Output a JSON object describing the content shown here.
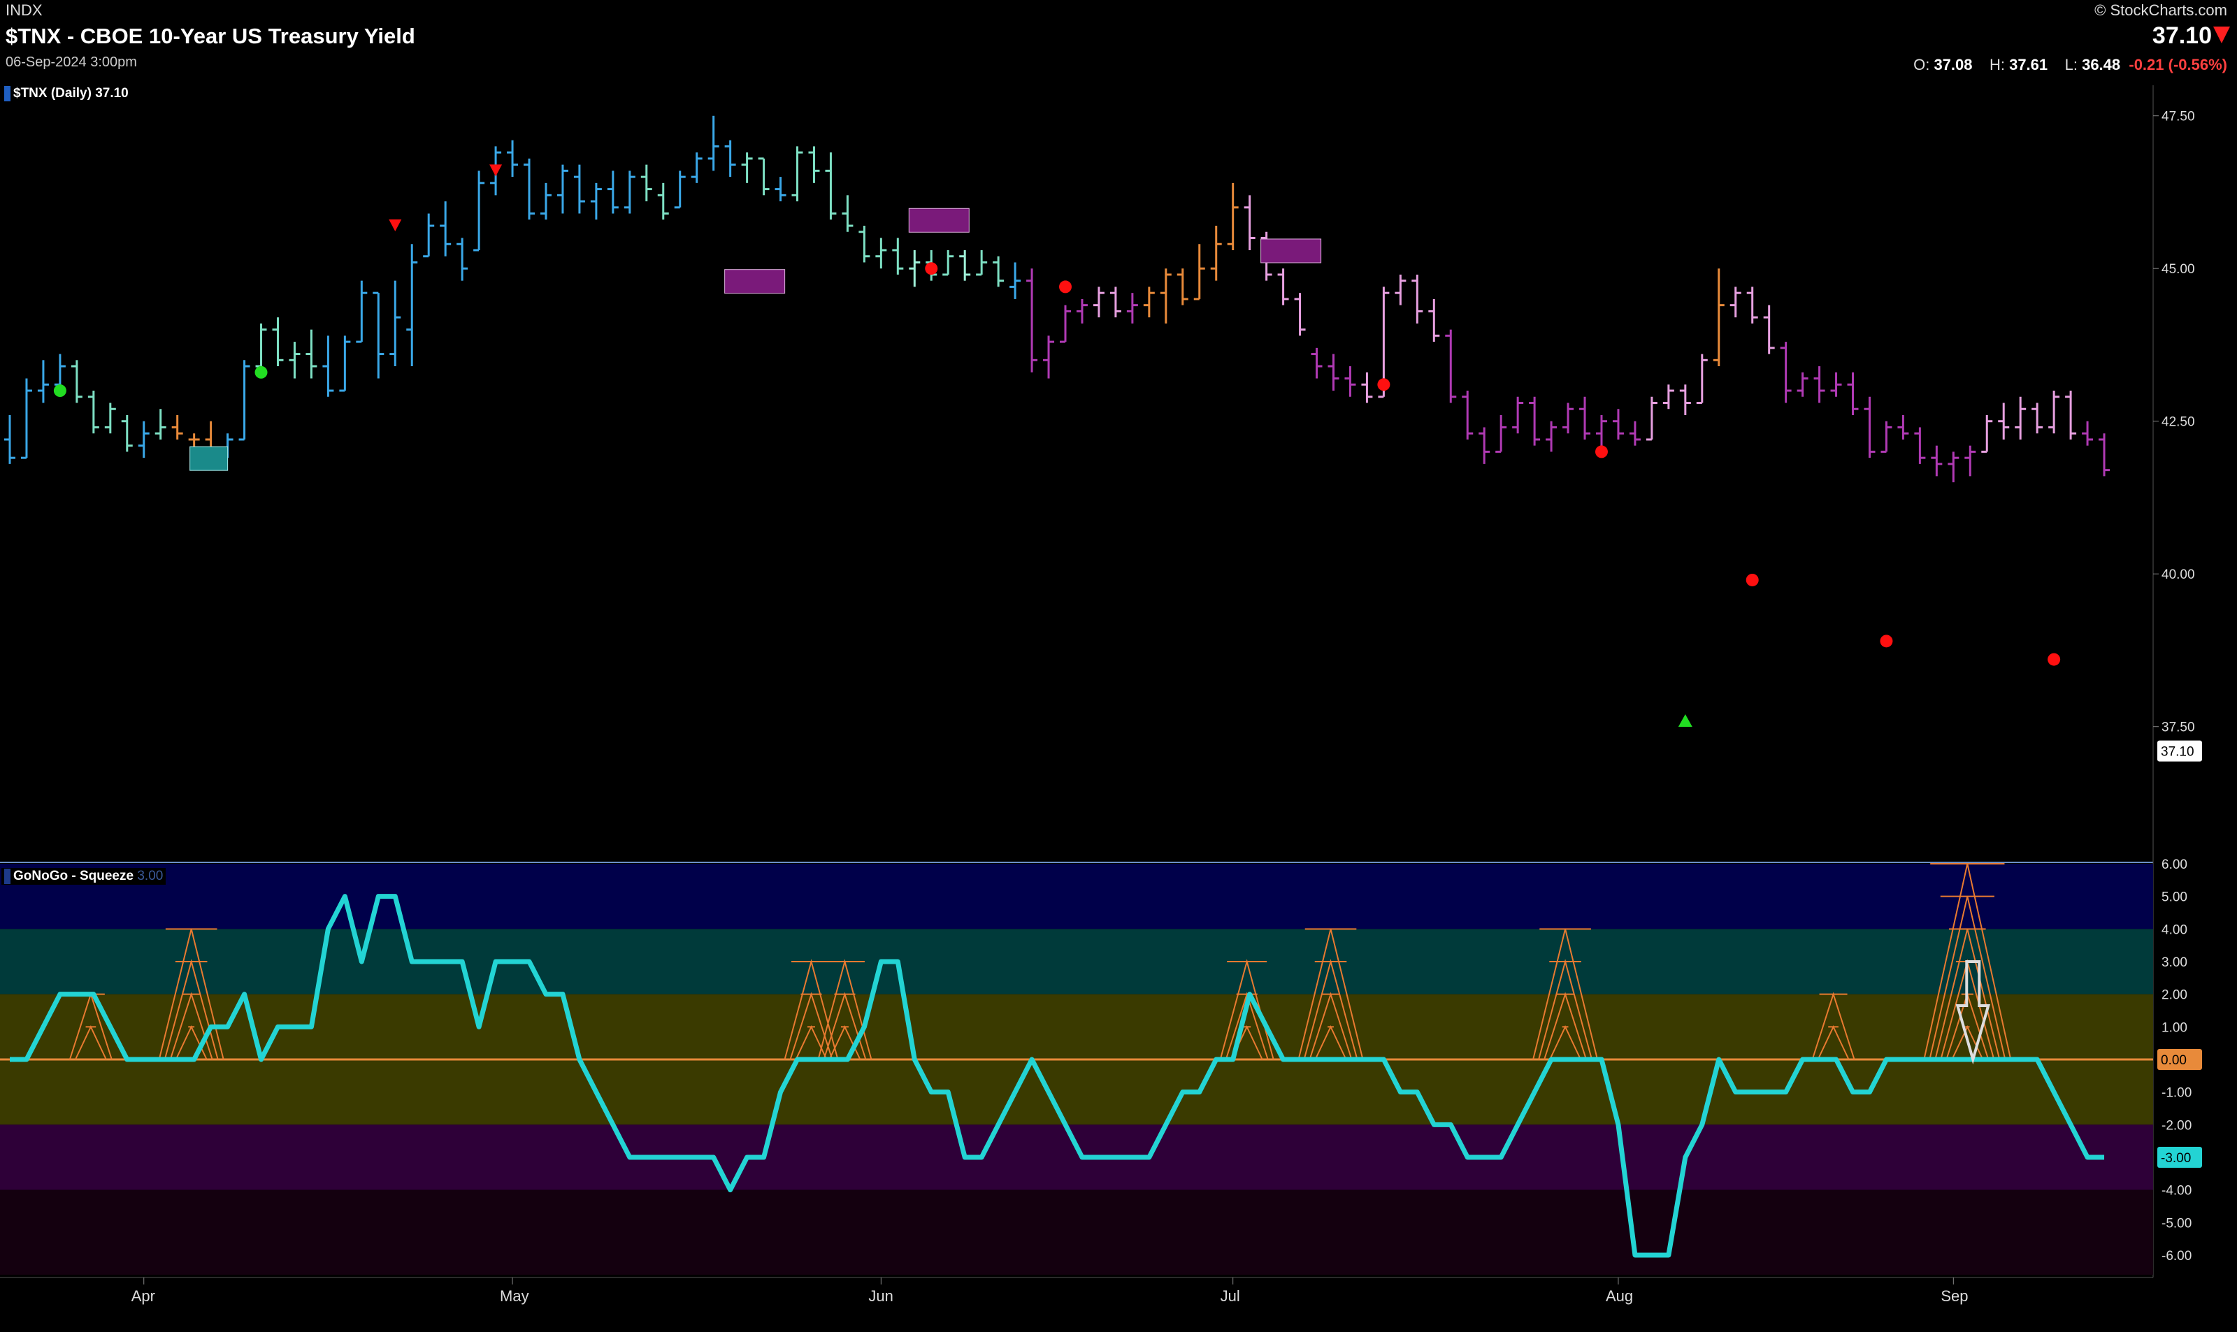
{
  "header": {
    "exchange": "INDX",
    "title": "$TNX - CBOE 10-Year US Treasury Yield",
    "datetime": "06-Sep-2024 3:00pm",
    "brand": "© StockCharts.com",
    "last_price": "37.10",
    "open_label": "O:",
    "open": "37.08",
    "high_label": "H:",
    "high": "37.61",
    "low_label": "L:",
    "low": "36.48",
    "change": "-0.21 (-0.56%)"
  },
  "price_panel": {
    "legend": "$TNX (Daily) 37.10",
    "y_ticks": [
      "47.50",
      "45.00",
      "42.50",
      "40.00",
      "37.50"
    ],
    "y_tick_values": [
      47.5,
      45.0,
      42.5,
      40.0,
      37.5
    ],
    "last_value_label": "37.10",
    "last_value": 37.1,
    "ylim": [
      35.3,
      48.0
    ]
  },
  "osc_panel": {
    "legend": "GoNoGo - Squeeze",
    "legend_suffix": "3.00",
    "y_ticks": [
      "6.00",
      "5.00",
      "4.00",
      "3.00",
      "2.00",
      "1.00",
      "0.00",
      "-1.00",
      "-2.00",
      "-3.00",
      "-4.00",
      "-5.00",
      "-6.00"
    ],
    "y_tick_values": [
      6,
      5,
      4,
      3,
      2,
      1,
      0,
      -1,
      -2,
      -3,
      -4,
      -5,
      -6
    ],
    "zero_label": "0.00",
    "last_label": "-3.00",
    "last_value": -3,
    "ylim": [
      -6.6,
      6.0
    ]
  },
  "x_axis": {
    "labels": [
      "Apr",
      "May",
      "Jun",
      "Jul",
      "Aug",
      "Sep"
    ],
    "label_index": [
      8,
      30,
      52,
      73,
      96,
      116
    ]
  },
  "colors": {
    "go_strong": "#3aa8e8",
    "go": "#7ee0c4",
    "go_weak": "#9ff0d8",
    "amber": "#e88a3a",
    "nogo_weak": "#e7a0e0",
    "nogo": "#b03ab4",
    "oscillator": "#23d4d4",
    "squeeze": "#e87a30",
    "zero_line": "#e88a3a"
  },
  "chart_data": {
    "type": "ohlc",
    "series": [
      {
        "name": "$TNX (Daily)",
        "bars": [
          [
            42.2,
            42.6,
            41.8,
            41.9,
            "go_strong"
          ],
          [
            41.9,
            43.2,
            41.9,
            43.0,
            "go_strong"
          ],
          [
            43.0,
            43.5,
            42.8,
            43.1,
            "go_strong"
          ],
          [
            43.1,
            43.6,
            43.0,
            43.4,
            "go_strong"
          ],
          [
            43.4,
            43.5,
            42.8,
            42.9,
            "go"
          ],
          [
            42.9,
            43.0,
            42.3,
            42.4,
            "go"
          ],
          [
            42.4,
            42.8,
            42.3,
            42.7,
            "go"
          ],
          [
            42.5,
            42.6,
            42.0,
            42.1,
            "go"
          ],
          [
            42.1,
            42.5,
            41.9,
            42.3,
            "go_strong"
          ],
          [
            42.3,
            42.7,
            42.2,
            42.4,
            "go"
          ],
          [
            42.4,
            42.6,
            42.2,
            42.3,
            "amber"
          ],
          [
            42.2,
            42.3,
            41.9,
            42.2,
            "amber"
          ],
          [
            42.2,
            42.5,
            41.9,
            41.9,
            "amber"
          ],
          [
            41.9,
            42.3,
            41.9,
            42.2,
            "go_strong"
          ],
          [
            42.2,
            43.5,
            42.2,
            43.4,
            "go_strong"
          ],
          [
            43.4,
            44.1,
            43.2,
            44.0,
            "go"
          ],
          [
            44.0,
            44.2,
            43.4,
            43.5,
            "go"
          ],
          [
            43.5,
            43.8,
            43.2,
            43.6,
            "go"
          ],
          [
            43.6,
            44.0,
            43.2,
            43.4,
            "go"
          ],
          [
            43.4,
            43.9,
            42.9,
            43.0,
            "go_strong"
          ],
          [
            43.0,
            43.9,
            43.0,
            43.8,
            "go_strong"
          ],
          [
            43.8,
            44.8,
            43.8,
            44.6,
            "go_strong"
          ],
          [
            44.6,
            44.6,
            43.2,
            43.6,
            "go_strong"
          ],
          [
            43.6,
            44.8,
            43.4,
            44.2,
            "go_strong"
          ],
          [
            44.0,
            45.4,
            43.4,
            45.1,
            "go_strong"
          ],
          [
            45.2,
            45.9,
            45.2,
            45.7,
            "go_strong"
          ],
          [
            45.7,
            46.1,
            45.2,
            45.4,
            "go_strong"
          ],
          [
            45.4,
            45.5,
            44.8,
            45.0,
            "go_strong"
          ],
          [
            45.3,
            46.6,
            45.3,
            46.4,
            "go_strong"
          ],
          [
            46.4,
            47.0,
            46.2,
            46.9,
            "go_strong"
          ],
          [
            46.9,
            47.1,
            46.5,
            46.7,
            "go_strong"
          ],
          [
            46.7,
            46.8,
            45.8,
            45.9,
            "go_strong"
          ]
        ],
        "bars_2": [
          [
            45.9,
            46.4,
            45.8,
            46.2,
            "go_strong"
          ],
          [
            46.2,
            46.7,
            45.9,
            46.6,
            "go_strong"
          ],
          [
            46.5,
            46.7,
            45.9,
            46.1,
            "go_strong"
          ],
          [
            46.1,
            46.4,
            45.8,
            46.3,
            "go_strong"
          ],
          [
            46.3,
            46.6,
            45.9,
            46.0,
            "go_strong"
          ],
          [
            46.0,
            46.6,
            45.9,
            46.5,
            "go_strong"
          ],
          [
            46.5,
            46.7,
            46.1,
            46.3,
            "go"
          ],
          [
            46.2,
            46.4,
            45.8,
            45.9,
            "go"
          ],
          [
            46.0,
            46.6,
            46.0,
            46.5,
            "go_strong"
          ],
          [
            46.5,
            46.9,
            46.4,
            46.8,
            "go_strong"
          ],
          [
            46.8,
            47.5,
            46.6,
            47.0,
            "go_strong"
          ],
          [
            47.0,
            47.1,
            46.5,
            46.7,
            "go_strong"
          ],
          [
            46.7,
            46.9,
            46.4,
            46.8,
            "go"
          ],
          [
            46.8,
            46.8,
            46.2,
            46.3,
            "go"
          ],
          [
            46.3,
            46.5,
            46.1,
            46.2,
            "go_strong"
          ],
          [
            46.2,
            47.0,
            46.1,
            46.9,
            "go"
          ],
          [
            46.9,
            47.0,
            46.4,
            46.6,
            "go"
          ],
          [
            46.6,
            46.9,
            45.8,
            45.9,
            "go"
          ],
          [
            45.9,
            46.2,
            45.6,
            45.7,
            "go"
          ],
          [
            45.6,
            45.7,
            45.1,
            45.2,
            "go"
          ]
        ]
      }
    ]
  }
}
